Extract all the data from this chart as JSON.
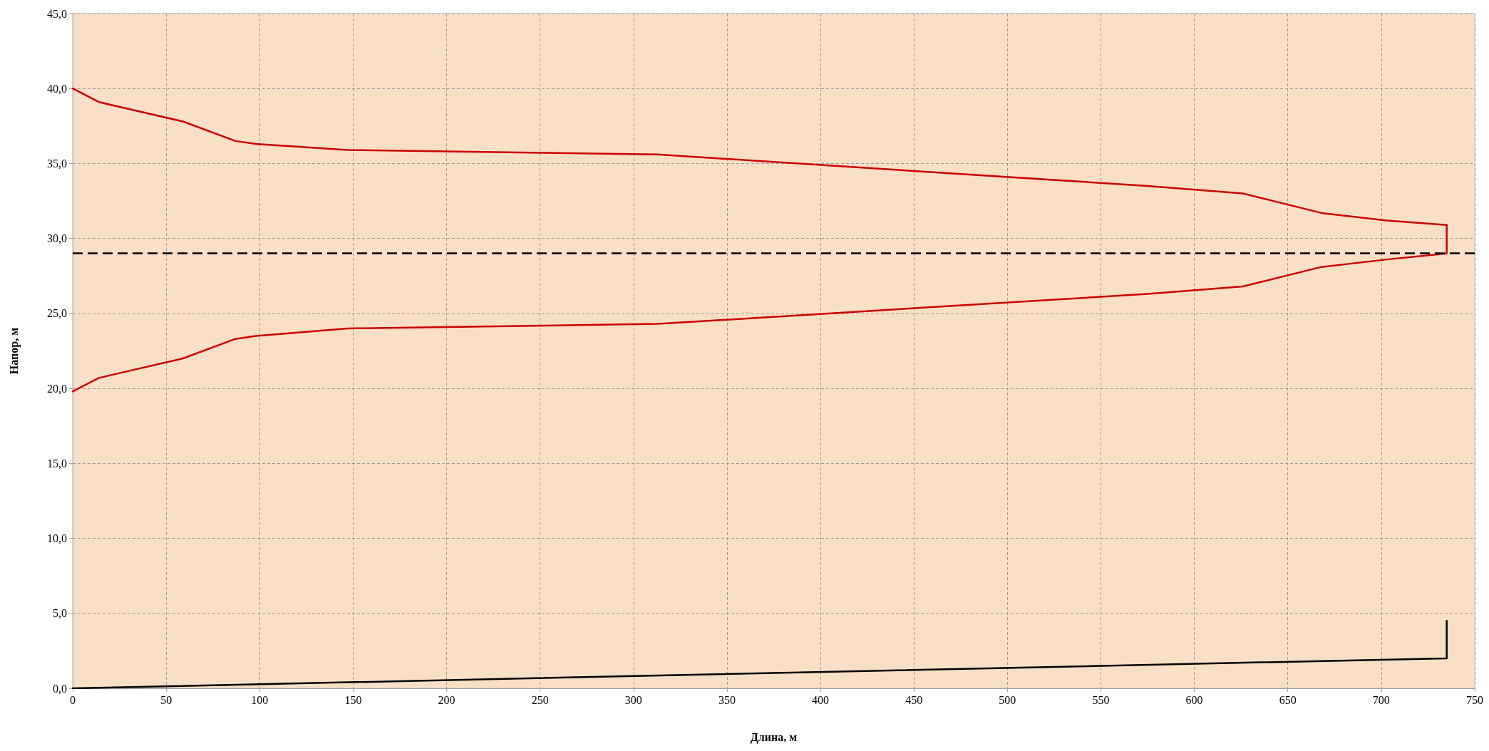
{
  "chart_data": {
    "type": "line",
    "xlabel": "Длина, м",
    "ylabel": "Напор, м",
    "series": [
      {
        "color": "#cc0000",
        "x": [
          0,
          14,
          59,
          87,
          98,
          147,
          313,
          575,
          626,
          668,
          703,
          735
        ],
        "values": [
          40.0,
          39.1,
          37.8,
          36.5,
          36.3,
          35.9,
          35.6,
          33.5,
          33.0,
          31.7,
          31.2,
          30.9
        ]
      },
      {
        "color": "#cc0000",
        "x": [
          0,
          14,
          59,
          87,
          98,
          147,
          313,
          575,
          626,
          668,
          703,
          735,
          735
        ],
        "values": [
          19.8,
          20.7,
          22.0,
          23.3,
          23.5,
          24.0,
          24.3,
          26.3,
          26.8,
          28.1,
          28.6,
          29.0,
          30.9
        ]
      },
      {
        "color": "#000000",
        "x": [
          0,
          735,
          735
        ],
        "values": [
          0,
          2.0,
          4.5
        ]
      }
    ],
    "ref_lines": [
      {
        "axis": "y",
        "value": 29,
        "color": "#000000",
        "line_style": "dashed"
      }
    ],
    "xlim": [
      0,
      750
    ],
    "xticks": [
      0,
      50,
      100,
      150,
      200,
      250,
      300,
      350,
      400,
      450,
      500,
      550,
      600,
      650,
      700,
      750
    ],
    "ylim": [
      0,
      45
    ],
    "yticks": [
      {
        "value": 0,
        "label": "0,0"
      },
      {
        "value": 5,
        "label": "5,0"
      },
      {
        "value": 10,
        "label": "10,0"
      },
      {
        "value": 15,
        "label": "15,0"
      },
      {
        "value": 20,
        "label": "20,0"
      },
      {
        "value": 25,
        "label": "25,0"
      },
      {
        "value": 30,
        "label": "30,0"
      },
      {
        "value": 35,
        "label": "35,0"
      },
      {
        "value": 40,
        "label": "40,0"
      },
      {
        "value": 45,
        "label": "45,0"
      }
    ],
    "grid": true,
    "marker": "none",
    "line_style": "solid"
  }
}
